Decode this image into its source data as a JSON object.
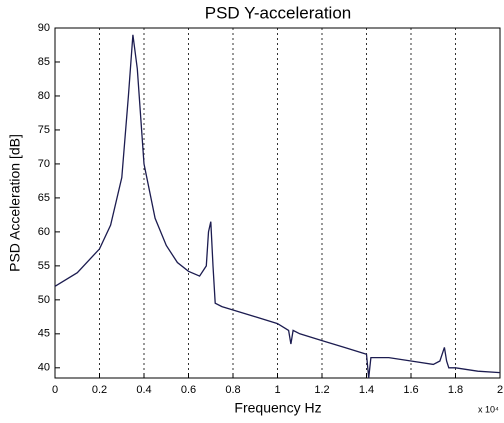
{
  "chart_data": {
    "type": "line",
    "title": "PSD Y-acceleration",
    "xlabel": "Frequency Hz",
    "ylabel": "PSD Acceleration [dB]",
    "x_exponent_label": "x 10⁴",
    "x": [
      0,
      0.1,
      0.2,
      0.25,
      0.3,
      0.33,
      0.35,
      0.37,
      0.4,
      0.45,
      0.5,
      0.55,
      0.6,
      0.65,
      0.68,
      0.69,
      0.7,
      0.71,
      0.72,
      0.75,
      0.8,
      0.9,
      1.0,
      1.05,
      1.06,
      1.07,
      1.1,
      1.2,
      1.3,
      1.4,
      1.41,
      1.42,
      1.5,
      1.6,
      1.7,
      1.73,
      1.75,
      1.76,
      1.77,
      1.8,
      1.9,
      2.0
    ],
    "series": [
      {
        "color": "#1c1c50",
        "values": [
          52,
          54,
          57.5,
          61,
          68,
          80,
          89,
          84,
          70,
          62,
          58,
          55.5,
          54.2,
          53.5,
          55,
          60,
          61.5,
          55,
          49.5,
          49,
          48.5,
          47.5,
          46.5,
          45.5,
          43.5,
          45.5,
          45,
          44,
          43,
          42,
          38.5,
          41.5,
          41.5,
          41,
          40.5,
          41,
          43,
          41,
          40,
          40,
          39.5,
          39.3
        ]
      }
    ],
    "xlim": [
      0,
      2
    ],
    "xticks": [
      0,
      0.2,
      0.4,
      0.6,
      0.8,
      1,
      1.2,
      1.4,
      1.6,
      1.8,
      2
    ],
    "ylim": [
      38.5,
      90
    ],
    "yticks": [
      40,
      45,
      50,
      55,
      60,
      65,
      70,
      75,
      80,
      85,
      90
    ],
    "xgrid": true,
    "ygrid": false
  }
}
